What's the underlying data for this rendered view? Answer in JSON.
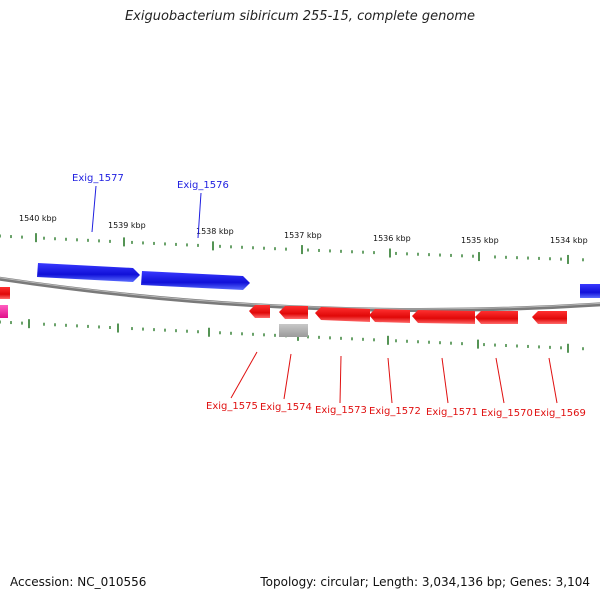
{
  "title": "Exiguobacterium sibiricum 255-15, complete genome",
  "accession": "Accession: NC_010556",
  "summary": "Topology: circular; Length: 3,034,136 bp; Genes: 3,104",
  "colors": {
    "forward_gene": "#1f1fe0",
    "reverse_gene": "#e01010",
    "rna_gene": "#b0b0b0",
    "other_gene": "#ff2aa8",
    "tick": "#2a7a2a",
    "backbone": "#8a8a8a"
  },
  "ruler_labels": [
    "1540 kbp",
    "1539 kbp",
    "1538 kbp",
    "1537 kbp",
    "1536 kbp",
    "1535 kbp",
    "1534 kbp"
  ],
  "forward_labels": [
    "Exig_1577",
    "Exig_1576"
  ],
  "reverse_labels": [
    "Exig_1575",
    "Exig_1574",
    "Exig_1573",
    "Exig_1572",
    "Exig_1571",
    "Exig_1570",
    "Exig_1569"
  ]
}
